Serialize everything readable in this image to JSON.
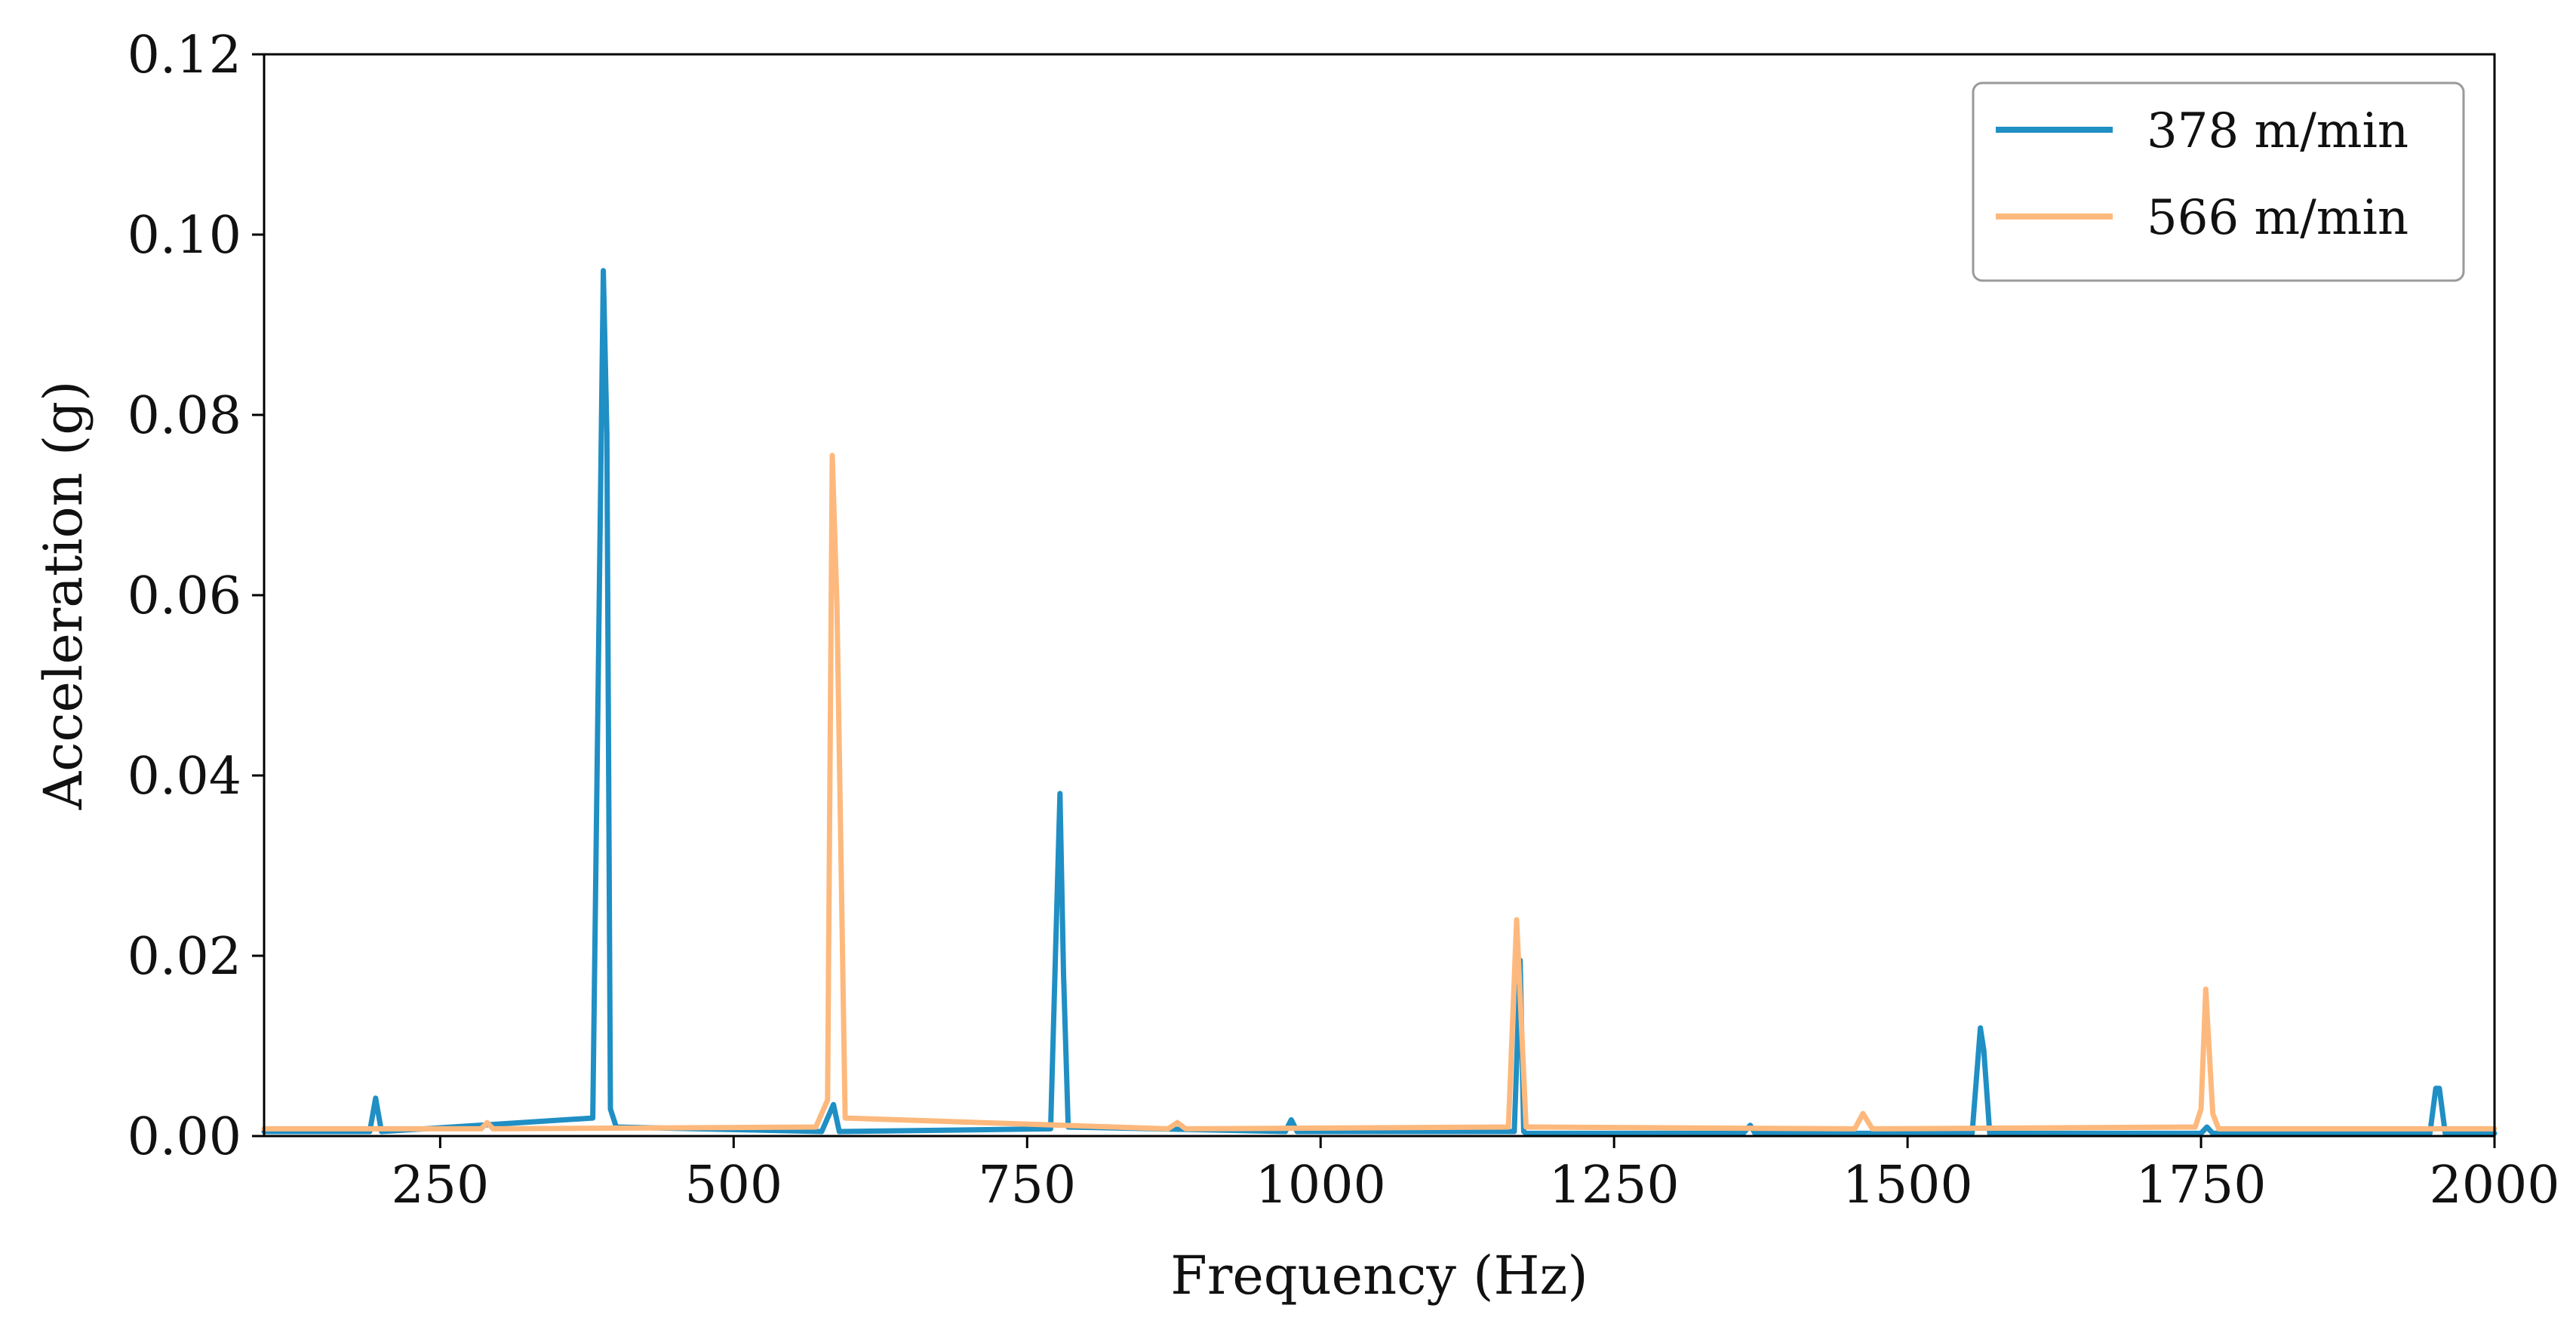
{
  "chart_data": {
    "type": "line",
    "xlabel": "Frequency (Hz)",
    "ylabel": "Acceleration (g)",
    "xlim": [
      100,
      2000
    ],
    "ylim": [
      0,
      0.12
    ],
    "x_ticks": [
      250,
      500,
      750,
      1000,
      1250,
      1500,
      1750,
      2000
    ],
    "x_tick_labels": [
      "250",
      "500",
      "750",
      "1000",
      "1250",
      "1500",
      "1750",
      "2000"
    ],
    "y_ticks": [
      0,
      0.02,
      0.04,
      0.06,
      0.08,
      0.1,
      0.12
    ],
    "y_tick_labels": [
      "0.00",
      "0.02",
      "0.04",
      "0.06",
      "0.08",
      "0.10",
      "0.12"
    ],
    "grid": false,
    "legend_position": "top-right",
    "series": [
      {
        "name": "378 m/min",
        "color": "#1f8fc4",
        "x": [
          100,
          190,
          195,
          200,
          380,
          389,
          392,
          395,
          400,
          575,
          585,
          590,
          770,
          778,
          781,
          785,
          970,
          975,
          980,
          1165,
          1170,
          1173,
          1175,
          1360,
          1366,
          1370,
          1555,
          1562,
          1565,
          1570,
          1750,
          1755,
          1760,
          1945,
          1950,
          1953,
          1958,
          2000
        ],
        "y": [
          0.0005,
          0.0005,
          0.0042,
          0.0005,
          0.002,
          0.096,
          0.078,
          0.003,
          0.001,
          0.0005,
          0.0035,
          0.0005,
          0.0008,
          0.038,
          0.018,
          0.001,
          0.0005,
          0.0018,
          0.0005,
          0.0005,
          0.0195,
          0.0005,
          0.0003,
          0.0003,
          0.0012,
          0.0003,
          0.0003,
          0.012,
          0.0095,
          0.0003,
          0.0003,
          0.001,
          0.0003,
          0.0003,
          0.0053,
          0.0053,
          0.0003,
          0.0003
        ]
      },
      {
        "name": "566 m/min",
        "color": "#fdb97d",
        "x": [
          100,
          285,
          290,
          295,
          570,
          580,
          584,
          588,
          595,
          870,
          878,
          885,
          1160,
          1167,
          1170,
          1175,
          1455,
          1462,
          1470,
          1745,
          1750,
          1754,
          1760,
          1765,
          2000
        ],
        "y": [
          0.0008,
          0.0008,
          0.0015,
          0.0008,
          0.001,
          0.004,
          0.0755,
          0.059,
          0.002,
          0.0008,
          0.0015,
          0.0008,
          0.001,
          0.024,
          0.0155,
          0.001,
          0.0008,
          0.0025,
          0.0008,
          0.001,
          0.003,
          0.0163,
          0.0025,
          0.0008,
          0.0008
        ]
      }
    ]
  }
}
